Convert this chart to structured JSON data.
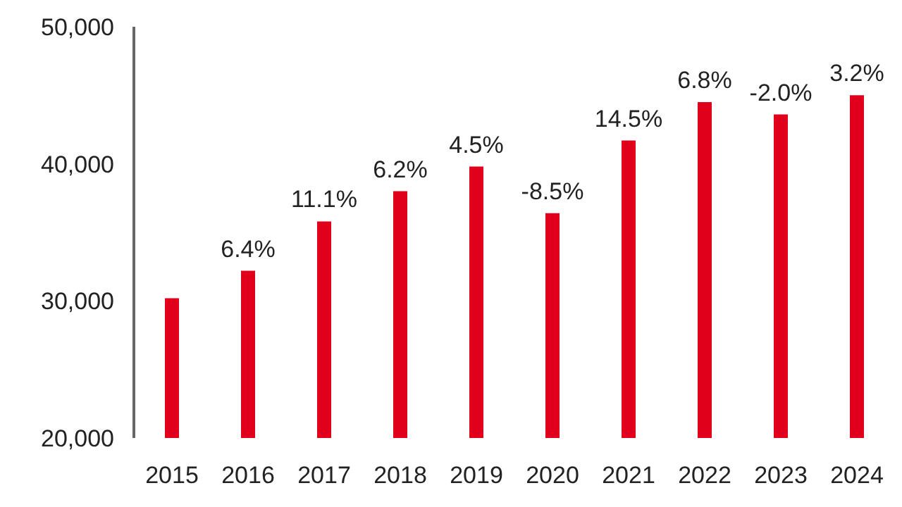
{
  "chart_data": {
    "type": "bar",
    "categories": [
      "2015",
      "2016",
      "2017",
      "2018",
      "2019",
      "2020",
      "2021",
      "2022",
      "2023",
      "2024"
    ],
    "values": [
      30200,
      32200,
      35800,
      38000,
      39800,
      36400,
      41700,
      44500,
      43600,
      45000
    ],
    "annotations": [
      {
        "text": "6.4%",
        "x": "2016",
        "y": 32200
      },
      {
        "text": "11.1%",
        "x": "2017",
        "y": 35800
      },
      {
        "text": "6.2%",
        "x": "2018",
        "y": 38000
      },
      {
        "text": "4.5%",
        "x": "2019",
        "y": 39800
      },
      {
        "text": "-8.5%",
        "x": "2020",
        "y": 36400
      },
      {
        "text": "14.5%",
        "x": "2021",
        "y": 41700
      },
      {
        "text": "6.8%",
        "x": "2022",
        "y": 44500
      },
      {
        "text": "-2.0%",
        "x": "2023",
        "y": 43600
      },
      {
        "text": "3.2%",
        "x": "2024",
        "y": 45000
      }
    ],
    "color": "#e0001b",
    "ylim": [
      20000,
      50000
    ],
    "yticks": [
      {
        "value": 20000,
        "label": "20,000"
      },
      {
        "value": 30000,
        "label": "30,000"
      },
      {
        "value": 40000,
        "label": "40,000"
      },
      {
        "value": 50000,
        "label": "50,000"
      }
    ],
    "grid": false,
    "legend": false
  }
}
